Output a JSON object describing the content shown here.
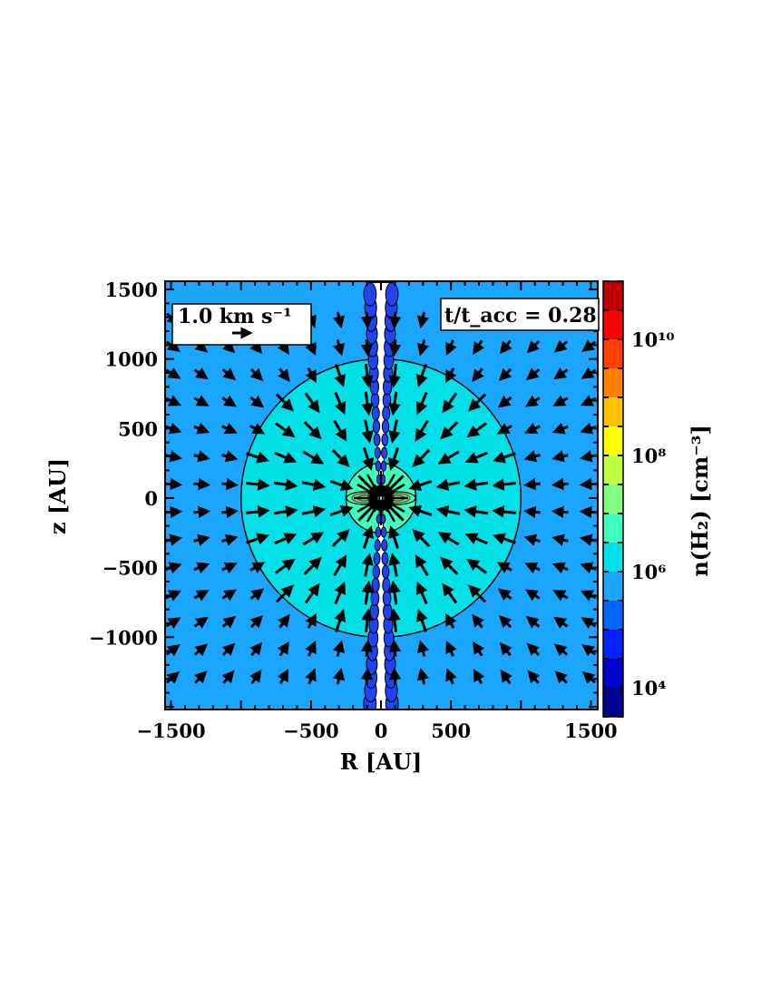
{
  "chart_data": {
    "type": "heatmap",
    "description_of_axes": "R vs z",
    "x_label": "R [AU]",
    "y_label": "z [AU]",
    "xlim": [
      -1500,
      1500
    ],
    "ylim": [
      -1500,
      1500
    ],
    "x_ticks": [
      -1500,
      -500,
      0,
      500,
      1500
    ],
    "x_tick_labels": [
      "−1500",
      "−500",
      "0",
      "500",
      "1500"
    ],
    "y_ticks": [
      1500,
      1000,
      500,
      0,
      -500,
      -1000
    ],
    "y_tick_labels": [
      "1500",
      "1000",
      "500",
      "0",
      "−500",
      "−1000"
    ],
    "colorbar": {
      "label": "n(H₂) [cm⁻³]",
      "scale": "log",
      "range": [
        3.5,
        11.0
      ],
      "tick_exponents": [
        4,
        6,
        8,
        10
      ],
      "tick_labels": [
        "10⁴",
        "10⁶",
        "10⁸",
        "10¹⁰"
      ],
      "levels": [
        {
          "from": 3.5,
          "to": 4.0,
          "color": "#00008f"
        },
        {
          "from": 4.0,
          "to": 4.5,
          "color": "#0000cc"
        },
        {
          "from": 4.5,
          "to": 5.0,
          "color": "#0022ff"
        },
        {
          "from": 5.0,
          "to": 5.5,
          "color": "#0066ff"
        },
        {
          "from": 5.5,
          "to": 6.0,
          "color": "#1aa6ff"
        },
        {
          "from": 6.0,
          "to": 6.5,
          "color": "#00e0e6"
        },
        {
          "from": 6.5,
          "to": 7.0,
          "color": "#40ffbd"
        },
        {
          "from": 7.0,
          "to": 7.5,
          "color": "#80ff80"
        },
        {
          "from": 7.5,
          "to": 8.0,
          "color": "#bfff40"
        },
        {
          "from": 8.0,
          "to": 8.5,
          "color": "#ffff00"
        },
        {
          "from": 8.5,
          "to": 9.0,
          "color": "#ffc000"
        },
        {
          "from": 9.0,
          "to": 9.5,
          "color": "#ff8000"
        },
        {
          "from": 9.5,
          "to": 10.0,
          "color": "#ff4000"
        },
        {
          "from": 10.0,
          "to": 10.5,
          "color": "#ff0000"
        },
        {
          "from": 10.5,
          "to": 11.0,
          "color": "#c00000"
        },
        {
          "from": 11.0,
          "to": 11.5,
          "color": "#800000"
        }
      ]
    },
    "regions": [
      {
        "name": "ambient",
        "shape": "background",
        "log_density_level": 5.5,
        "color": "#1aa6ff"
      },
      {
        "name": "envelope",
        "shape": "circle",
        "radius_au": 1000,
        "log_density_level": 6.0,
        "color": "#00e0e6"
      },
      {
        "name": "inner-core",
        "shape": "circle",
        "radius_au": 250,
        "log_density_level": 6.5,
        "color": "#40ffbd"
      },
      {
        "name": "outflow-cavity",
        "shape": "bipolar cone",
        "half_width_au_at_1500": 80,
        "color": "#ffffff"
      }
    ],
    "velocity_field": {
      "grid_spacing_au": 200,
      "direction": "infall toward origin",
      "reference_arrow_kms": 1.0
    },
    "annotations": {
      "velocity_key": "1.0 km s⁻¹",
      "time_label": "t/t_acc = 0.28"
    }
  }
}
